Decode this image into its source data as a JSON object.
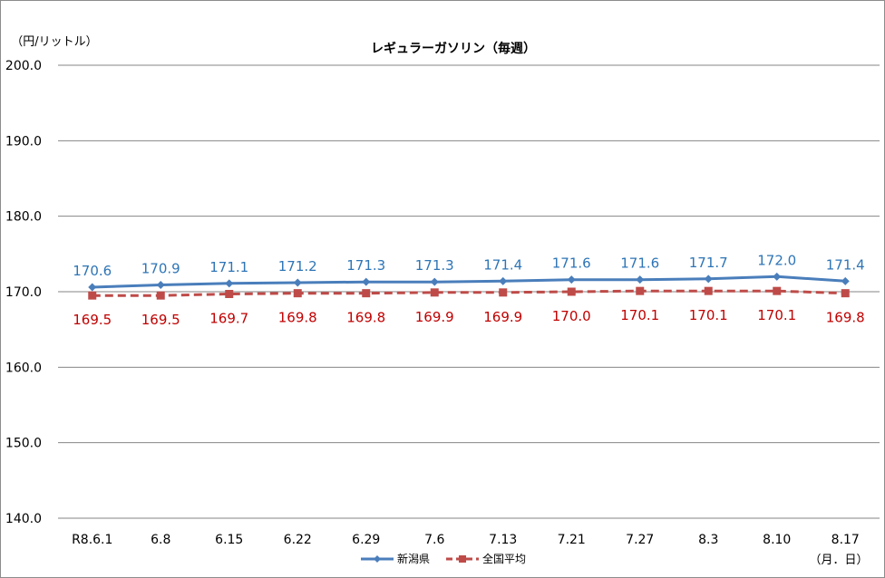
{
  "chart_data": {
    "type": "line",
    "title": "レギュラーガソリン（毎週）",
    "y_unit": "（円/リットル）",
    "x_unit": "（月．日）",
    "categories": [
      "R8.6.1",
      "6.8",
      "6.15",
      "6.22",
      "6.29",
      "7.6",
      "7.13",
      "7.21",
      "7.27",
      "8.3",
      "8.10",
      "8.17"
    ],
    "ylim": [
      140,
      200
    ],
    "yticks": [
      "140.0",
      "150.0",
      "160.0",
      "170.0",
      "180.0",
      "190.0",
      "200.0"
    ],
    "grid": true,
    "legend_position": "bottom",
    "series": [
      {
        "name": "新潟県",
        "color": "#4a7ebb",
        "label_color": "#2e75b6",
        "marker": "diamond",
        "line_style": "solid",
        "values": [
          170.6,
          170.9,
          171.1,
          171.2,
          171.3,
          171.3,
          171.4,
          171.6,
          171.6,
          171.7,
          172.0,
          171.4
        ],
        "labels": [
          "170.6",
          "170.9",
          "171.1",
          "171.2",
          "171.3",
          "171.3",
          "171.4",
          "171.6",
          "171.6",
          "171.7",
          "172.0",
          "171.4"
        ]
      },
      {
        "name": "全国平均",
        "color": "#be4b48",
        "label_color": "#c00000",
        "marker": "square",
        "line_style": "dashed",
        "values": [
          169.5,
          169.5,
          169.7,
          169.8,
          169.8,
          169.9,
          169.9,
          170.0,
          170.1,
          170.1,
          170.1,
          169.8
        ],
        "labels": [
          "169.5",
          "169.5",
          "169.7",
          "169.8",
          "169.8",
          "169.9",
          "169.9",
          "170.0",
          "170.1",
          "170.1",
          "170.1",
          "169.8"
        ]
      }
    ]
  }
}
